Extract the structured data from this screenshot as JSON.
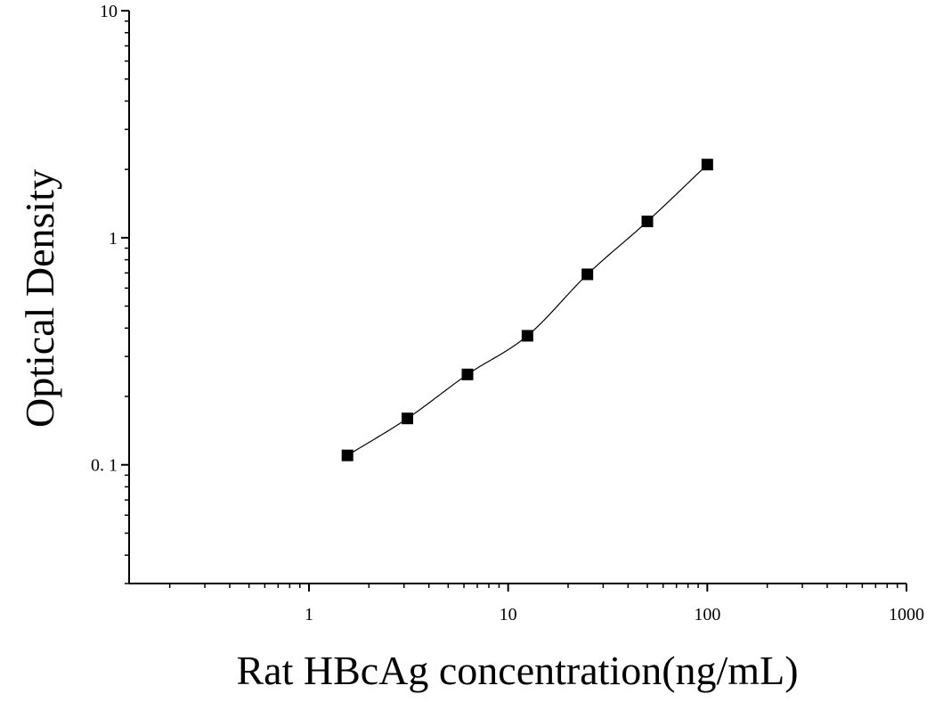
{
  "chart_data": {
    "type": "scatter",
    "xlabel": "Rat HBcAg concentration(ng/mL)",
    "ylabel": "Optical Density",
    "x_scale": "log",
    "y_scale": "log",
    "xlim": [
      0.125,
      1000
    ],
    "ylim": [
      0.03,
      10
    ],
    "x_ticks": [
      {
        "value": 1,
        "label": "1"
      },
      {
        "value": 10,
        "label": "10"
      },
      {
        "value": 100,
        "label": "100"
      },
      {
        "value": 1000,
        "label": "1000"
      }
    ],
    "y_ticks": [
      {
        "value": 0.1,
        "label": "0. 1"
      },
      {
        "value": 1,
        "label": "1"
      },
      {
        "value": 10,
        "label": "10"
      }
    ],
    "grid": false,
    "legend": "none",
    "series": [
      {
        "marker": "square",
        "color": "#000000",
        "x": [
          1.56,
          3.12,
          6.25,
          12.5,
          25,
          50,
          100
        ],
        "y": [
          0.11,
          0.16,
          0.25,
          0.37,
          0.69,
          1.18,
          2.1
        ]
      }
    ],
    "fit_curve": true
  }
}
